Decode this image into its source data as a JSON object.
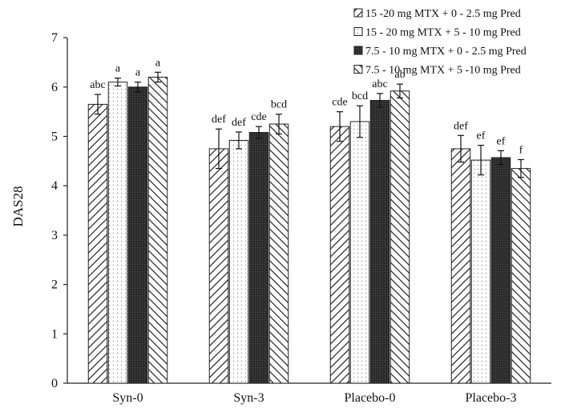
{
  "chart_data": {
    "type": "bar",
    "ylabel": "DAS28",
    "xlabel": "",
    "ylim": [
      0,
      7
    ],
    "yticks": [
      "0",
      "1",
      "2",
      "3",
      "4",
      "5",
      "6",
      "7"
    ],
    "categories": [
      "Syn-0",
      "Syn-3",
      "Placebo-0",
      "Placebo-3"
    ],
    "legend_position": "top-right",
    "error_bars": true,
    "grid": false,
    "series": [
      {
        "name": "15 -20 mg MTX + 0 - 2.5 mg Pred",
        "pattern": "diagonal-forward",
        "values": [
          5.65,
          4.75,
          5.2,
          4.75
        ],
        "errors": [
          0.2,
          0.4,
          0.3,
          0.27
        ],
        "letters": [
          "abc",
          "def",
          "cde",
          "def"
        ]
      },
      {
        "name": "15 - 20 mg MTX + 5 - 10 mg Pred",
        "pattern": "dotted",
        "values": [
          6.1,
          4.92,
          5.3,
          4.52
        ],
        "errors": [
          0.08,
          0.17,
          0.32,
          0.3
        ],
        "letters": [
          "a",
          "def",
          "bcd",
          "ef"
        ]
      },
      {
        "name": "7.5 - 10 mg MTX + 0 - 2.5 mg Pred",
        "pattern": "dark-solid",
        "values": [
          6.0,
          5.08,
          5.73,
          4.57
        ],
        "errors": [
          0.1,
          0.12,
          0.14,
          0.14
        ],
        "letters": [
          "a",
          "cde",
          "abc",
          "ef"
        ]
      },
      {
        "name": "7.5 - 10 mg MTX + 5 -10 mg Pred",
        "pattern": "diagonal-backward",
        "values": [
          6.2,
          5.25,
          5.92,
          4.35
        ],
        "errors": [
          0.1,
          0.2,
          0.14,
          0.18
        ],
        "letters": [
          "a",
          "bcd",
          "ab",
          "f"
        ]
      }
    ]
  }
}
